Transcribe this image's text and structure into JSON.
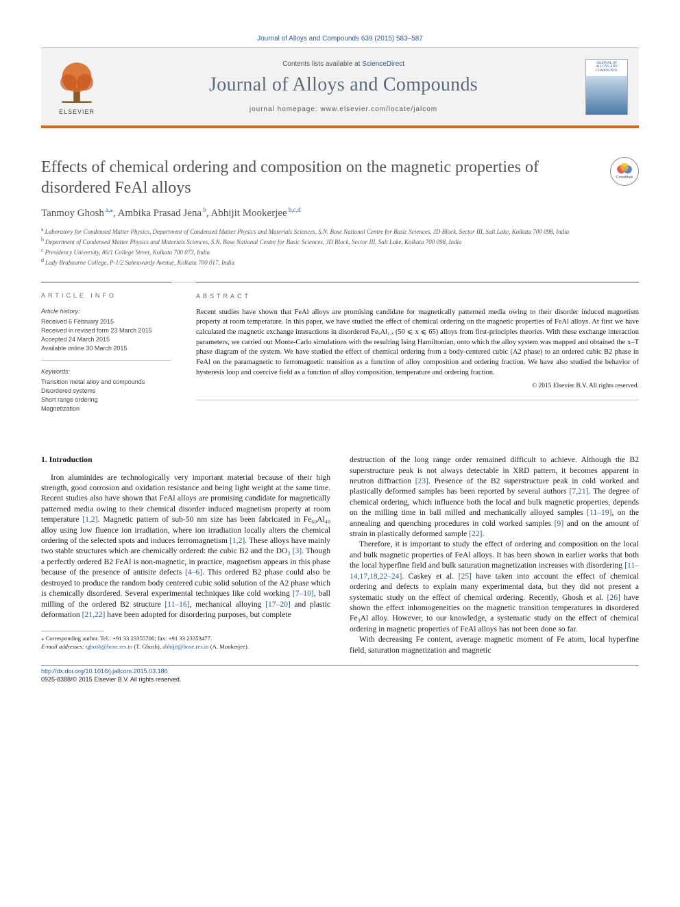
{
  "citation": "Journal of Alloys and Compounds 639 (2015) 583–587",
  "header": {
    "contents_prefix": "Contents lists available at ",
    "contents_link": "ScienceDirect",
    "journal": "Journal of Alloys and Compounds",
    "homepage_prefix": "journal homepage: ",
    "homepage_url": "www.elsevier.com/locate/jalcom",
    "publisher_word": "ELSEVIER",
    "cover_top": "JOURNAL OF",
    "cover_mid": "ALLOYS AND COMPOUNDS"
  },
  "crossmark_label": "CrossMark",
  "title": "Effects of chemical ordering and composition on the magnetic properties of disordered FeAl alloys",
  "authors_html": "Tanmoy Ghosh|a,*|, Ambika Prasad Jena|b|, Abhijit Mookerjee|b,c,d|",
  "affiliations": [
    "a|Laboratory for Condensed Matter Physics, Department of Condensed Matter Physics and Materials Sciences, S.N. Bose National Centre for Basic Sciences, JD Block, Sector III, Salt Lake, Kolkata 700 098, India",
    "b|Department of Condensed Matter Physics and Materials Sciences, S.N. Bose National Centre for Basic Sciences, JD Block, Sector III, Salt Lake, Kolkata 700 098, India",
    "c|Presidency University, 86/1 College Street, Kolkata 700 073, India",
    "d|Lady Brabourne College, P-1/2 Suhrawardy Avenue, Kolkata 700 017, India"
  ],
  "article_info": {
    "heading": "article info",
    "history_label": "Article history:",
    "history": [
      "Received 6 February 2015",
      "Received in revised form 23 March 2015",
      "Accepted 24 March 2015",
      "Available online 30 March 2015"
    ],
    "keywords_label": "Keywords:",
    "keywords": [
      "Transition metal alloy and compounds",
      "Disordered systems",
      "Short range ordering",
      "Magnetization"
    ]
  },
  "abstract": {
    "heading": "abstract",
    "text": "Recent studies have shown that FeAl alloys are promising candidate for magnetically patterned media owing to their disorder induced magnetism property at room temperature. In this paper, we have studied the effect of chemical ordering on the magnetic properties of FeAl alloys. At first we have calculated the magnetic exchange interactions in disordered FeₓAl₁₋ₓ (50 ⩽ x ⩽ 65) alloys from first-principles theories. With these exchange interaction parameters, we carried out Monte-Carlo simulations with the resulting Ising Hamiltonian, onto which the alloy system was mapped and obtained the x–T phase diagram of the system. We have studied the effect of chemical ordering from a body-centered cubic (A2 phase) to an ordered cubic B2 phase in FeAl on the paramagnetic to ferromagnetic transition as a function of alloy composition and ordering fraction. We have also studied the behavior of hysteresis loop and coercive field as a function of alloy composition, temperature and ordering fraction.",
    "copyright": "© 2015 Elsevier B.V. All rights reserved."
  },
  "body": {
    "section_heading": "1. Introduction",
    "col1": "Iron aluminides are technologically very important material because of their high strength, good corrosion and oxidation resistance and being light weight at the same time. Recent studies also have shown that FeAl alloys are promising candidate for magnetically patterned media owing to their chemical disorder induced magnetism property at room temperature [1,2]. Magnetic pattern of sub-50 nm size has been fabricated in Fe₆₀Al₄₀ alloy using low fluence ion irradiation, where ion irradiation locally alters the chemical ordering of the selected spots and induces ferromagnetism [1,2]. These alloys have mainly two stable structures which are chemically ordered: the cubic B2 and the DO₃ [3]. Though a perfectly ordered B2 FeAl is non-magnetic, in practice, magnetism appears in this phase because of the presence of antisite defects [4–6]. This ordered B2 phase could also be destroyed to produce the random body centered cubic solid solution of the A2 phase which is chemically disordered. Several experimental techniques like cold working [7–10], ball milling of the ordered B2 structure [11–16], mechanical alloying [17–20] and plastic deformation [21,22] have been adopted for disordering purposes, but complete",
    "col2": "destruction of the long range order remained difficult to achieve. Although the B2 superstructure peak is not always detectable in XRD pattern, it becomes apparent in neutron diffraction [23]. Presence of the B2 superstructure peak in cold worked and plastically deformed samples has been reported by several authors [7,21]. The degree of chemical ordering, which influence both the local and bulk magnetic properties, depends on the milling time in ball milled and mechanically alloyed samples [11–19], on the annealing and quenching procedures in cold worked samples [9] and on the amount of strain in plastically deformed sample [22].",
    "col2b": "Therefore, it is important to study the effect of ordering and composition on the local and bulk magnetic properties of FeAl alloys. It has been shown in earlier works that both the local hyperfine field and bulk saturation magnetization increases with disordering [11–14,17,18,22–24]. Caskey et al. [25] have taken into account the effect of chemical ordering and defects to explain many experimental data, but they did not present a systematic study on the effect of chemical ordering. Recently, Ghosh et al. [26] have shown the effect inhomogeneities on the magnetic transition temperatures in disordered Fe₃Al alloy. However, to our knowledge, a systematic study on the effect of chemical ordering in magnetic properties of FeAl alloys has not been done so far.",
    "col2c": "With decreasing Fe content, average magnetic moment of Fe atom, local hyperfine field, saturation magnetization and magnetic"
  },
  "footnotes": {
    "corresponding": "⁎ Corresponding author. Tel.: +91 33 23355706; fax: +91 33 23353477.",
    "email_label": "E-mail addresses: ",
    "email1": "tghosh@bose.res.in",
    "email1_who": " (T. Ghosh), ",
    "email2": "abhijit@bose.res.in",
    "email2_who": " (A. Mookerjee)."
  },
  "bottom": {
    "doi": "http://dx.doi.org/10.1016/j.jallcom.2015.03.186",
    "issn_line": "0925-8388/© 2015 Elsevier B.V. All rights reserved."
  },
  "colors": {
    "accent_orange": "#d8651e",
    "link_blue": "#2a5a8a",
    "heading_gray": "#535353"
  }
}
